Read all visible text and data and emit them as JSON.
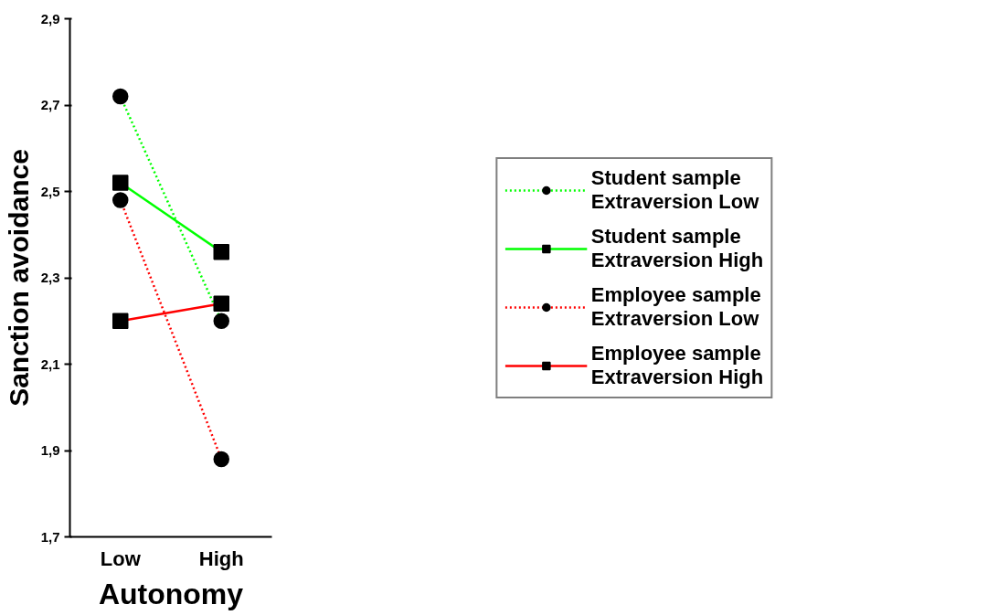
{
  "chart_data": {
    "type": "line",
    "xlabel": "Autonomy",
    "ylabel": "Sanction avoidance",
    "categories": [
      "Low",
      "High"
    ],
    "ylim": [
      1.7,
      2.9
    ],
    "yticks": [
      {
        "value": 1.7,
        "label": "1,7"
      },
      {
        "value": 1.9,
        "label": "1,9"
      },
      {
        "value": 2.1,
        "label": "2,1"
      },
      {
        "value": 2.3,
        "label": "2,3"
      },
      {
        "value": 2.5,
        "label": "2,5"
      },
      {
        "value": 2.7,
        "label": "2,7"
      },
      {
        "value": 2.9,
        "label": "2,9"
      }
    ],
    "grid": false,
    "legend": "right",
    "series": [
      {
        "name": "Student sample\nExtraversion Low",
        "color": "#00ff00",
        "values": [
          2.72,
          2.2
        ],
        "line_style": "dotted",
        "marker": "circle"
      },
      {
        "name": "Student sample\nExtraversion High",
        "color": "#00ff00",
        "values": [
          2.52,
          2.36
        ],
        "line_style": "solid",
        "marker": "square"
      },
      {
        "name": "Employee sample\nExtraversion Low",
        "color": "#ff0000",
        "values": [
          2.48,
          1.88
        ],
        "line_style": "dotted",
        "marker": "circle"
      },
      {
        "name": "Employee sample\nExtraversion High",
        "color": "#ff0000",
        "values": [
          2.2,
          2.24
        ],
        "line_style": "solid",
        "marker": "square"
      }
    ]
  }
}
